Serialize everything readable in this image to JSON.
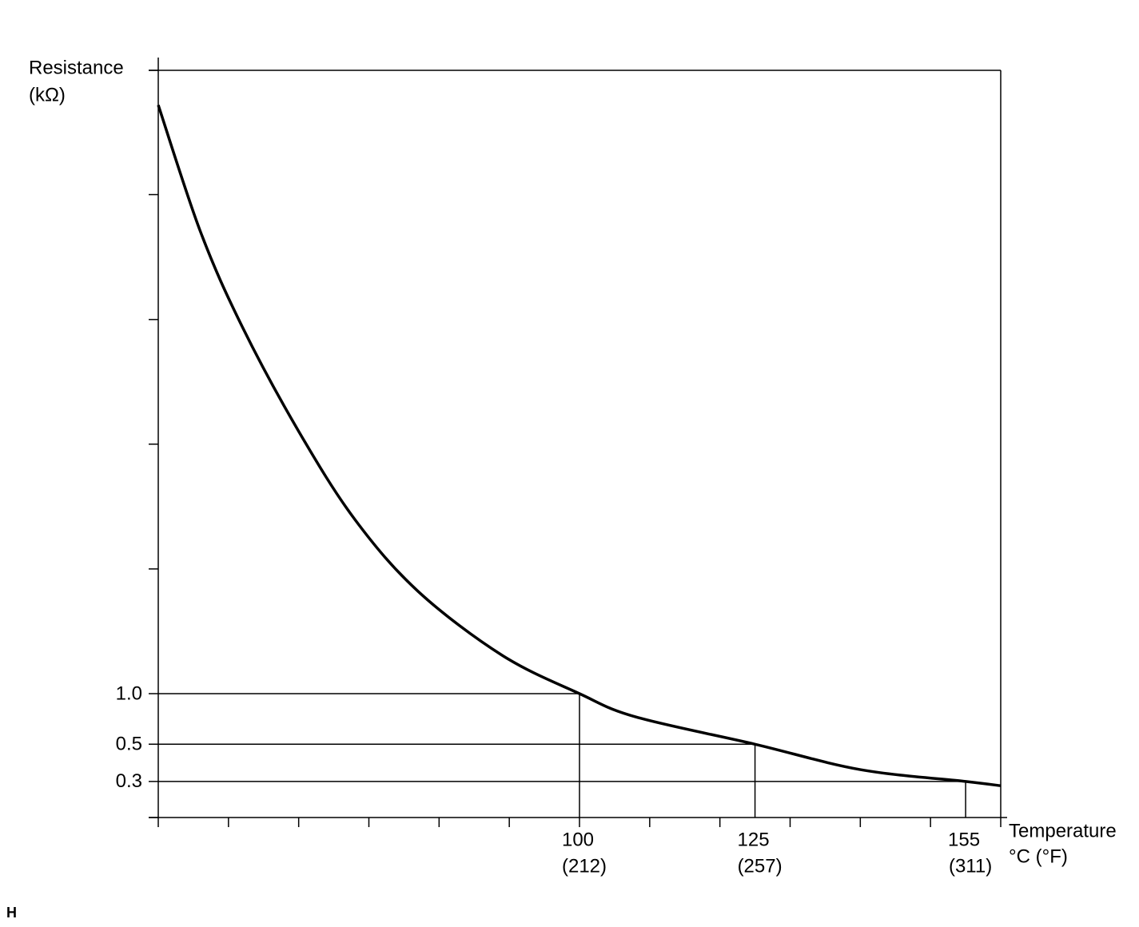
{
  "chart_data": {
    "type": "line",
    "y_label_lines": [
      "Resistance",
      "(kΩ)"
    ],
    "x_label_lines": [
      "Temperature",
      "°C (°F)"
    ],
    "corner_mark": "H",
    "log_y": true,
    "xlim": [
      40,
      160
    ],
    "xticks": [
      40,
      50,
      60,
      70,
      80,
      90,
      100,
      110,
      120,
      130,
      140,
      150,
      160
    ],
    "ylim": [
      0.183,
      5150
    ],
    "yticks": [
      0.183,
      5.53,
      30.6,
      169,
      937,
      5150
    ],
    "color": "#000000",
    "x": [
      40,
      46,
      52,
      60,
      68,
      77,
      89,
      100,
      108,
      125,
      140,
      155,
      160
    ],
    "series": [
      {
        "values": [
          3200,
          565,
          152,
          36.5,
          10.9,
          4.07,
          1.69,
          1,
          0.727,
          0.5,
          0.353,
          0.3,
          0.283
        ]
      }
    ],
    "reference_points": [
      {
        "x": 100,
        "x_label_f": "(212)",
        "y": 1,
        "y_label": "1.0"
      },
      {
        "x": 125,
        "x_label_f": "(257)",
        "y": 0.5,
        "y_label": "0.5"
      },
      {
        "x": 155,
        "x_label_f": "(311)",
        "y": 0.3,
        "y_label": "0.3"
      }
    ]
  }
}
